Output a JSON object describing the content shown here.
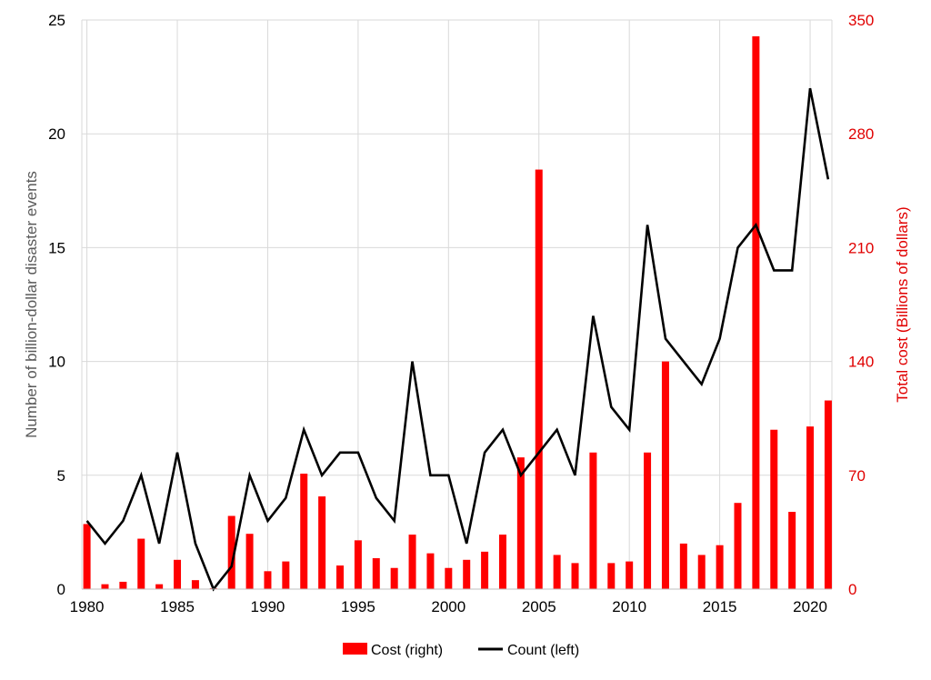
{
  "chart_data": {
    "type": "bar+line",
    "title": "",
    "xlabel": "",
    "ylabel_left": "Number of billion-dollar disaster events",
    "ylabel_right": "Total cost (Billions of dollars)",
    "ylim_left": [
      0,
      25
    ],
    "ylim_right": [
      0,
      350
    ],
    "yticks_left": [
      0,
      5,
      10,
      15,
      20,
      25
    ],
    "yticks_right": [
      0,
      70,
      140,
      210,
      280,
      350
    ],
    "xticks": [
      1980,
      1985,
      1990,
      1995,
      2000,
      2005,
      2010,
      2015,
      2020
    ],
    "grid": true,
    "legend_position": "bottom",
    "colors": {
      "cost": "#ff0000",
      "count": "#000000",
      "right_axis": "#e00000",
      "grid": "#d9d9d9"
    },
    "x": [
      1980,
      1981,
      1982,
      1983,
      1984,
      1985,
      1986,
      1987,
      1988,
      1989,
      1990,
      1991,
      1992,
      1993,
      1994,
      1995,
      1996,
      1997,
      1998,
      1999,
      2000,
      2001,
      2002,
      2003,
      2004,
      2005,
      2006,
      2007,
      2008,
      2009,
      2010,
      2011,
      2012,
      2013,
      2014,
      2015,
      2016,
      2017,
      2018,
      2019,
      2020,
      2021
    ],
    "series": [
      {
        "name": "Cost (right)",
        "type": "bar",
        "axis": "right",
        "values": [
          40,
          3,
          4.5,
          31,
          3,
          18,
          5.5,
          0.5,
          45,
          34,
          11,
          17,
          71,
          57,
          14.5,
          30,
          19,
          13,
          33.5,
          22,
          13,
          18,
          23,
          33.5,
          81,
          258,
          21,
          16,
          84,
          16,
          17,
          84,
          140,
          28,
          21,
          27,
          53,
          340,
          98,
          47.5,
          100,
          116
        ]
      },
      {
        "name": "Count (left)",
        "type": "line",
        "axis": "left",
        "values": [
          3,
          2,
          3,
          5,
          2,
          6,
          2,
          0,
          1,
          5,
          3,
          4,
          7,
          5,
          6,
          6,
          4,
          3,
          10,
          5,
          5,
          2,
          6,
          7,
          5,
          6,
          7,
          5,
          12,
          8,
          7,
          16,
          11,
          10,
          9,
          11,
          15,
          16,
          14,
          14,
          22,
          18
        ]
      }
    ]
  }
}
